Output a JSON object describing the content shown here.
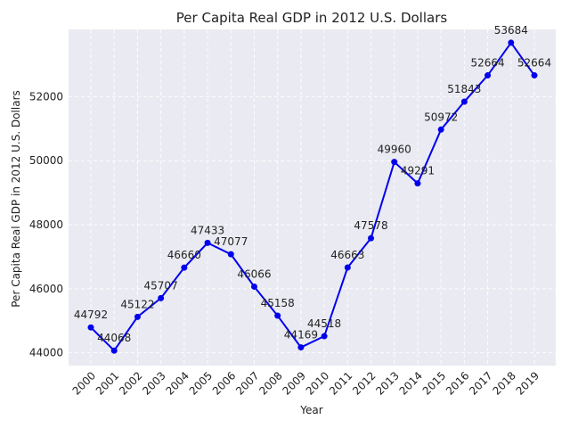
{
  "chart_data": {
    "type": "line",
    "title": "Per Capita Real GDP in 2012 U.S. Dollars",
    "xlabel": "Year",
    "ylabel": "Per Capita Real GDP in 2012 U.S. Dollars",
    "categories": [
      "2000",
      "2001",
      "2002",
      "2003",
      "2004",
      "2005",
      "2006",
      "2007",
      "2008",
      "2009",
      "2010",
      "2011",
      "2012",
      "2013",
      "2014",
      "2015",
      "2016",
      "2017",
      "2018",
      "2019"
    ],
    "series": [
      {
        "values": [
          44792,
          44068,
          45122,
          45707,
          46660,
          47433,
          47077,
          46066,
          45158,
          44169,
          44518,
          46663,
          47578,
          49960,
          49291,
          50972,
          51843,
          52664,
          53684,
          52664
        ],
        "color": "#0000ee"
      }
    ],
    "yticks": [
      44000,
      46000,
      48000,
      50000,
      52000
    ],
    "ylim": [
      43600,
      54100
    ],
    "grid": true,
    "background": "#eaeaf2",
    "marker": "circle",
    "data_labels": true
  }
}
